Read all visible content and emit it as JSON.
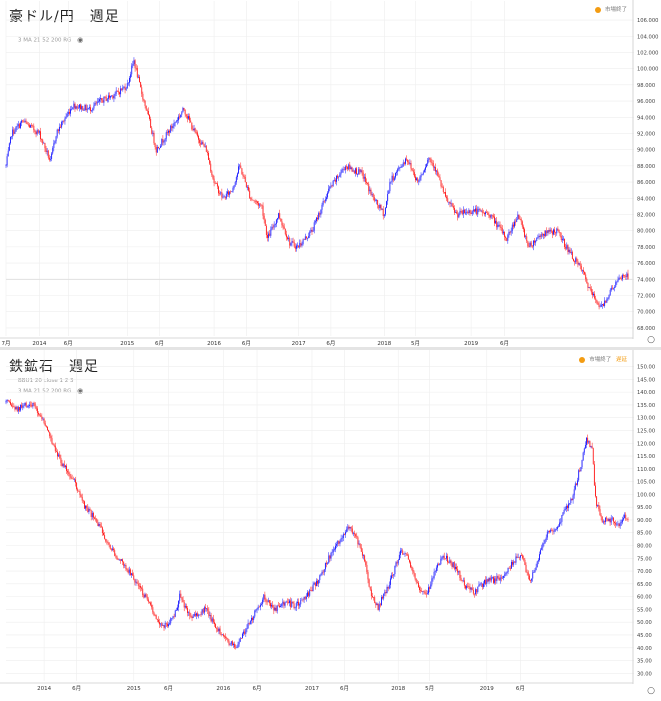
{
  "chart_data": [
    {
      "type": "candlestick",
      "title": "豪ドル/円　週足",
      "indicator_label": "3 MA 21 52 200 RG",
      "status": {
        "text": "市場終了",
        "delay": ""
      },
      "ylim": [
        67,
        106.5
      ],
      "yticks": [
        "68.000",
        "70.000",
        "72.000",
        "74.000",
        "76.000",
        "78.000",
        "80.000",
        "82.000",
        "84.000",
        "86.000",
        "88.000",
        "90.000",
        "92.000",
        "94.000",
        "96.000",
        "98.000",
        "100.000",
        "102.000",
        "104.000",
        "106.000"
      ],
      "ytick_values": [
        68,
        70,
        72,
        74,
        76,
        78,
        80,
        82,
        84,
        86,
        88,
        90,
        92,
        94,
        96,
        98,
        100,
        102,
        104,
        106
      ],
      "xticks": [
        "7月",
        "2014",
        "6月",
        "2015",
        "6月",
        "2016",
        "6月",
        "2017",
        "6月",
        "2018",
        "5月",
        "2019",
        "6月"
      ],
      "xtick_index": [
        0,
        30,
        56,
        109,
        138,
        187,
        216,
        263,
        292,
        340,
        368,
        418,
        448
      ],
      "price_line": 74.0,
      "anchors": [
        [
          0,
          88
        ],
        [
          5,
          92
        ],
        [
          15,
          93.5
        ],
        [
          30,
          92
        ],
        [
          40,
          88.5
        ],
        [
          45,
          92
        ],
        [
          60,
          95.5
        ],
        [
          75,
          95
        ],
        [
          85,
          96
        ],
        [
          100,
          97
        ],
        [
          109,
          98
        ],
        [
          115,
          101
        ],
        [
          120,
          98
        ],
        [
          128,
          94
        ],
        [
          135,
          90
        ],
        [
          150,
          93
        ],
        [
          160,
          95
        ],
        [
          170,
          92
        ],
        [
          180,
          90
        ],
        [
          187,
          86
        ],
        [
          195,
          84
        ],
        [
          203,
          85
        ],
        [
          210,
          88
        ],
        [
          220,
          84
        ],
        [
          230,
          83
        ],
        [
          235,
          79
        ],
        [
          245,
          82
        ],
        [
          255,
          78.5
        ],
        [
          262,
          78
        ],
        [
          275,
          80
        ],
        [
          290,
          85
        ],
        [
          305,
          88
        ],
        [
          320,
          87
        ],
        [
          330,
          84
        ],
        [
          340,
          82
        ],
        [
          345,
          86
        ],
        [
          360,
          89
        ],
        [
          370,
          86
        ],
        [
          380,
          89
        ],
        [
          385,
          88
        ],
        [
          395,
          84
        ],
        [
          405,
          82
        ],
        [
          420,
          82.5
        ],
        [
          435,
          82
        ],
        [
          450,
          79
        ],
        [
          460,
          82
        ],
        [
          470,
          78
        ],
        [
          480,
          79.5
        ],
        [
          495,
          80
        ],
        [
          508,
          77
        ],
        [
          518,
          75
        ],
        [
          525,
          72.5
        ],
        [
          535,
          70.5
        ],
        [
          545,
          73
        ],
        [
          555,
          74.5
        ]
      ],
      "n": 560
    },
    {
      "type": "candlestick",
      "title": "鉄鉱石　週足",
      "indicator_label": "BBU1 20 close 1 2 3",
      "indicator_label2": "3 MA 21 52 200 RG",
      "status": {
        "text": "市場終了",
        "delay": "遅延"
      },
      "ylim": [
        27,
        151
      ],
      "yticks": [
        "30.00",
        "35.00",
        "40.00",
        "45.00",
        "50.00",
        "55.00",
        "60.00",
        "65.00",
        "70.00",
        "75.00",
        "80.00",
        "85.00",
        "90.00",
        "95.00",
        "100.00",
        "105.00",
        "110.00",
        "115.00",
        "120.00",
        "125.00",
        "130.00",
        "135.00",
        "140.00",
        "145.00",
        "150.00"
      ],
      "ytick_values": [
        30,
        35,
        40,
        45,
        50,
        55,
        60,
        65,
        70,
        75,
        80,
        85,
        90,
        95,
        100,
        105,
        110,
        115,
        120,
        125,
        130,
        135,
        140,
        145,
        150
      ],
      "xticks": [
        "2014",
        "6月",
        "2015",
        "6月",
        "2016",
        "6月",
        "2017",
        "6月",
        "2018",
        "5月",
        "2019",
        "6月"
      ],
      "xtick_index": [
        34,
        63,
        114,
        145,
        194,
        224,
        273,
        302,
        350,
        378,
        429,
        459
      ],
      "anchors": [
        [
          0,
          136
        ],
        [
          10,
          133
        ],
        [
          18,
          135
        ],
        [
          24,
          135
        ],
        [
          32,
          130
        ],
        [
          40,
          122
        ],
        [
          50,
          112
        ],
        [
          60,
          106
        ],
        [
          70,
          95
        ],
        [
          80,
          90
        ],
        [
          90,
          82
        ],
        [
          100,
          75
        ],
        [
          110,
          70
        ],
        [
          120,
          63
        ],
        [
          130,
          55
        ],
        [
          140,
          48
        ],
        [
          150,
          52
        ],
        [
          155,
          60
        ],
        [
          165,
          52
        ],
        [
          178,
          55
        ],
        [
          185,
          50
        ],
        [
          195,
          44
        ],
        [
          205,
          40
        ],
        [
          215,
          48
        ],
        [
          225,
          56
        ],
        [
          230,
          60
        ],
        [
          240,
          55
        ],
        [
          250,
          58
        ],
        [
          258,
          56
        ],
        [
          268,
          60
        ],
        [
          278,
          66
        ],
        [
          288,
          75
        ],
        [
          298,
          82
        ],
        [
          305,
          88
        ],
        [
          312,
          84
        ],
        [
          320,
          74
        ],
        [
          325,
          62
        ],
        [
          332,
          56
        ],
        [
          340,
          63
        ],
        [
          346,
          70
        ],
        [
          352,
          78
        ],
        [
          360,
          74
        ],
        [
          368,
          64
        ],
        [
          375,
          60
        ],
        [
          382,
          70
        ],
        [
          390,
          76
        ],
        [
          400,
          72
        ],
        [
          410,
          64
        ],
        [
          418,
          62
        ],
        [
          428,
          66
        ],
        [
          440,
          67
        ],
        [
          450,
          72
        ],
        [
          460,
          77
        ],
        [
          467,
          66
        ],
        [
          475,
          75
        ],
        [
          482,
          84
        ],
        [
          490,
          86
        ],
        [
          498,
          93
        ],
        [
          505,
          98
        ],
        [
          512,
          110
        ],
        [
          518,
          121
        ],
        [
          523,
          118
        ],
        [
          526,
          98
        ],
        [
          532,
          90
        ],
        [
          540,
          90
        ],
        [
          548,
          88
        ],
        [
          552,
          91
        ]
      ],
      "n": 556
    }
  ]
}
